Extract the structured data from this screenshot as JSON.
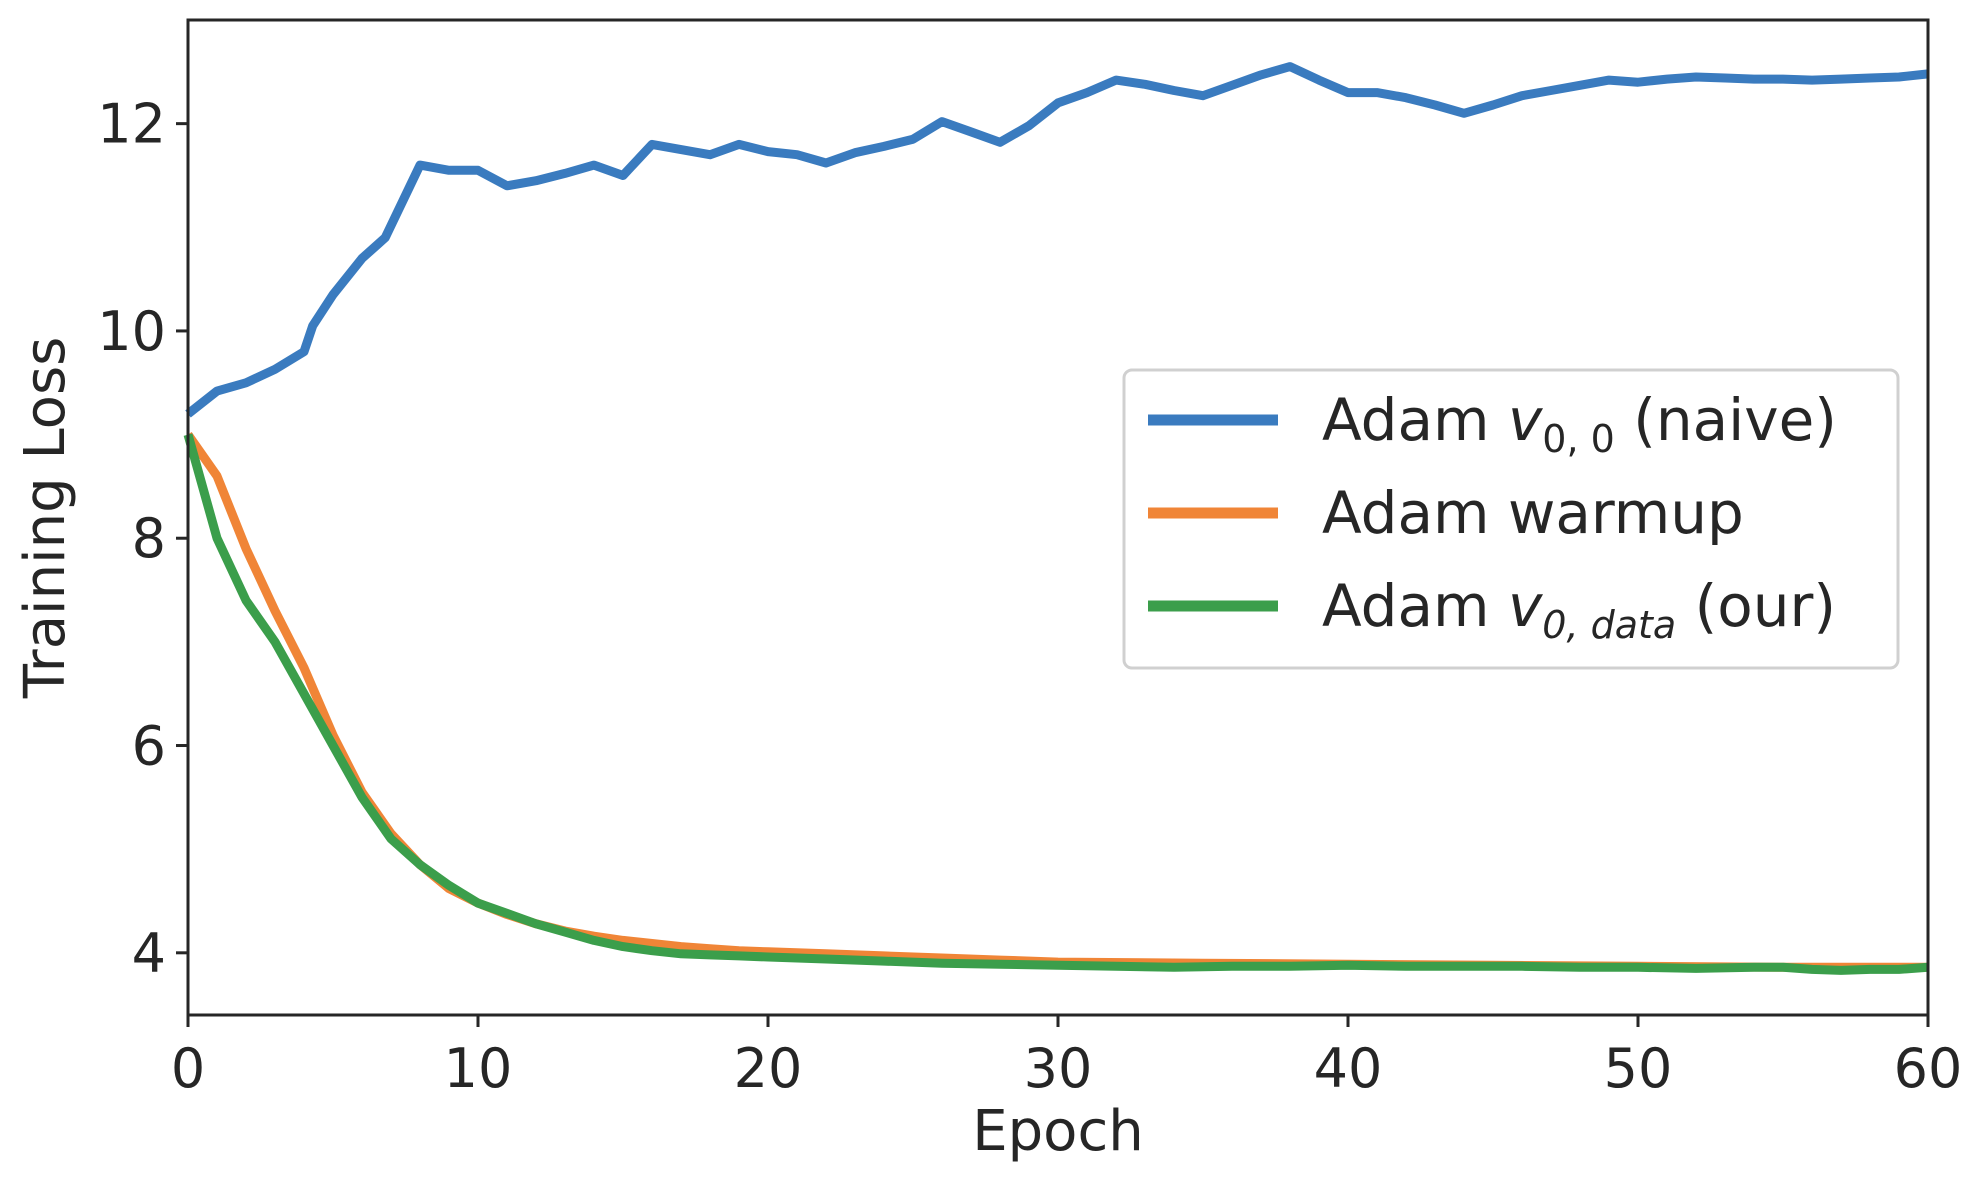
{
  "chart_data": {
    "type": "line",
    "xlabel": "Epoch",
    "ylabel": "Training Loss",
    "xlim": [
      0,
      60
    ],
    "ylim": [
      3.4,
      13.0
    ],
    "xticks": [
      0,
      10,
      20,
      30,
      40,
      50,
      60
    ],
    "yticks": [
      4,
      6,
      8,
      10,
      12
    ],
    "grid": false,
    "legend_position": "center-right",
    "series": [
      {
        "name": "Adam v0,0 (naive)",
        "legend": {
          "prefix": "Adam ",
          "var": "v",
          "sub": "0, 0",
          "suffix": " (naive)"
        },
        "color": "#3a7bbf",
        "x": [
          0,
          1,
          2,
          3,
          4,
          4.3,
          5,
          6,
          6.8,
          8,
          9,
          10,
          11,
          12,
          13,
          14,
          15,
          16,
          17,
          18,
          19,
          20,
          21,
          22,
          23,
          24,
          25,
          26,
          27,
          28,
          29,
          30,
          31,
          32,
          33,
          34,
          35,
          36,
          37,
          38,
          39,
          40,
          41,
          42,
          43,
          44,
          45,
          46,
          47,
          48,
          49,
          50,
          51,
          52,
          53,
          54,
          55,
          56,
          57,
          58,
          59,
          60
        ],
        "y": [
          9.2,
          9.42,
          9.5,
          9.63,
          9.8,
          10.05,
          10.35,
          10.7,
          10.9,
          11.6,
          11.55,
          11.55,
          11.4,
          11.45,
          11.52,
          11.6,
          11.5,
          11.8,
          11.75,
          11.7,
          11.8,
          11.73,
          11.7,
          11.62,
          11.72,
          11.78,
          11.85,
          12.02,
          11.92,
          11.82,
          11.98,
          12.2,
          12.3,
          12.42,
          12.38,
          12.32,
          12.27,
          12.37,
          12.47,
          12.55,
          12.42,
          12.3,
          12.3,
          12.25,
          12.18,
          12.1,
          12.18,
          12.27,
          12.32,
          12.37,
          12.42,
          12.4,
          12.43,
          12.45,
          12.44,
          12.43,
          12.43,
          12.42,
          12.43,
          12.44,
          12.45,
          12.48
        ]
      },
      {
        "name": "Adam warmup",
        "legend": {
          "prefix": "Adam warmup",
          "var": "",
          "sub": "",
          "suffix": ""
        },
        "color": "#f08537",
        "x": [
          0,
          1,
          2,
          3,
          4,
          5,
          6,
          7,
          8,
          9,
          10,
          11,
          12,
          13,
          14,
          15,
          16,
          17,
          18,
          19,
          20,
          22,
          24,
          26,
          28,
          30,
          35,
          40,
          45,
          50,
          55,
          60
        ],
        "y": [
          9.0,
          8.6,
          7.9,
          7.3,
          6.75,
          6.1,
          5.55,
          5.15,
          4.85,
          4.62,
          4.48,
          4.37,
          4.28,
          4.21,
          4.16,
          4.12,
          4.09,
          4.06,
          4.04,
          4.02,
          4.01,
          3.99,
          3.97,
          3.95,
          3.93,
          3.91,
          3.9,
          3.89,
          3.88,
          3.87,
          3.86,
          3.86
        ]
      },
      {
        "name": "Adam v0,data (our)",
        "legend": {
          "prefix": "Adam ",
          "var": "v",
          "sub": "0, data",
          "suffix": " (our)"
        },
        "color": "#3b9e4b",
        "x": [
          0,
          1,
          2,
          3,
          4,
          5,
          6,
          7,
          8,
          9,
          10,
          11,
          12,
          13,
          14,
          15,
          16,
          17,
          18,
          19,
          20,
          22,
          24,
          26,
          28,
          30,
          32,
          34,
          36,
          38,
          40,
          42,
          44,
          46,
          48,
          50,
          52,
          54,
          55,
          56,
          57,
          58,
          59,
          60
        ],
        "y": [
          9.0,
          8.0,
          7.4,
          7.0,
          6.5,
          6.0,
          5.5,
          5.1,
          4.85,
          4.65,
          4.48,
          4.38,
          4.28,
          4.2,
          4.12,
          4.06,
          4.02,
          3.99,
          3.98,
          3.97,
          3.96,
          3.94,
          3.92,
          3.9,
          3.89,
          3.88,
          3.87,
          3.86,
          3.87,
          3.87,
          3.88,
          3.87,
          3.87,
          3.87,
          3.86,
          3.86,
          3.85,
          3.86,
          3.86,
          3.84,
          3.83,
          3.84,
          3.84,
          3.86
        ]
      }
    ]
  }
}
